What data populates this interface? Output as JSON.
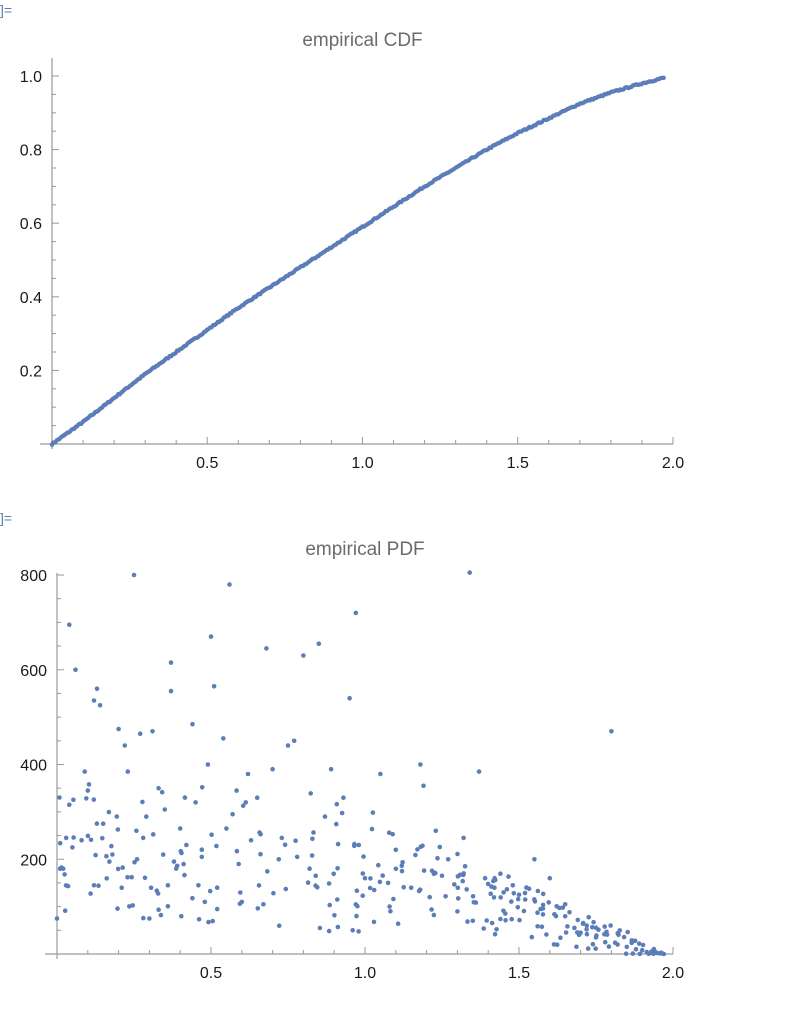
{
  "cells": [
    {
      "out_label": "]="
    },
    {
      "out_label": "]="
    }
  ],
  "colors": {
    "points": "#5b7db8",
    "axis": "#9a9a9a",
    "title": "#6b6b6b",
    "out_label": "#5a7fa8"
  },
  "chart_data": [
    {
      "type": "scatter",
      "title": "empirical CDF",
      "xlabel": "",
      "ylabel": "",
      "xlim": [
        0,
        2.0
      ],
      "ylim": [
        0,
        1.0
      ],
      "x_ticks": [
        "0.5",
        "1.0",
        "1.5",
        "2.0"
      ],
      "y_ticks": [
        "0.2",
        "0.4",
        "0.6",
        "0.8",
        "1.0"
      ],
      "grid": false,
      "description": "Dense monotone increasing curve of points from (0,0) to (~1.97, ~1.0), nearly linear with slope ~0.6 up to x~1.2, then concave bending toward 1.0.",
      "x": [
        0.0,
        0.1,
        0.2,
        0.3,
        0.4,
        0.5,
        0.6,
        0.7,
        0.8,
        0.9,
        1.0,
        1.1,
        1.2,
        1.3,
        1.4,
        1.5,
        1.6,
        1.7,
        1.8,
        1.9,
        1.97
      ],
      "y": [
        0.0,
        0.06,
        0.125,
        0.19,
        0.25,
        0.31,
        0.37,
        0.425,
        0.48,
        0.535,
        0.59,
        0.645,
        0.7,
        0.75,
        0.8,
        0.845,
        0.885,
        0.925,
        0.955,
        0.98,
        0.995
      ]
    },
    {
      "type": "scatter",
      "title": "empirical PDF",
      "xlabel": "",
      "ylabel": "",
      "xlim": [
        0,
        2.0
      ],
      "ylim": [
        0,
        800
      ],
      "x_ticks": [
        "0.5",
        "1.0",
        "1.5",
        "2.0"
      ],
      "y_ticks": [
        "200",
        "400",
        "600",
        "800"
      ],
      "grid": false,
      "description": "Noisy scatter of density estimates; roughly 100-400 for x<1, decreasing toward 0 as x approaches 2. Outliers up to ~800.",
      "points": [
        [
          0.0,
          75
        ],
        [
          0.01,
          180
        ],
        [
          0.02,
          180
        ],
        [
          0.03,
          245
        ],
        [
          0.04,
          315
        ],
        [
          0.05,
          225
        ],
        [
          0.06,
          600
        ],
        [
          0.04,
          695
        ],
        [
          0.08,
          240
        ],
        [
          0.09,
          385
        ],
        [
          0.1,
          345
        ],
        [
          0.12,
          145
        ],
        [
          0.13,
          560
        ],
        [
          0.12,
          535
        ],
        [
          0.14,
          525
        ],
        [
          0.15,
          275
        ],
        [
          0.17,
          195
        ],
        [
          0.18,
          210
        ],
        [
          0.2,
          475
        ],
        [
          0.21,
          140
        ],
        [
          0.22,
          440
        ],
        [
          0.23,
          385
        ],
        [
          0.25,
          800
        ],
        [
          0.26,
          200
        ],
        [
          0.27,
          465
        ],
        [
          0.28,
          245
        ],
        [
          0.29,
          290
        ],
        [
          0.3,
          75
        ],
        [
          0.31,
          470
        ],
        [
          0.33,
          350
        ],
        [
          0.35,
          305
        ],
        [
          0.36,
          145
        ],
        [
          0.37,
          615
        ],
        [
          0.37,
          555
        ],
        [
          0.38,
          195
        ],
        [
          0.4,
          265
        ],
        [
          0.42,
          230
        ],
        [
          0.44,
          485
        ],
        [
          0.45,
          320
        ],
        [
          0.47,
          205
        ],
        [
          0.48,
          110
        ],
        [
          0.49,
          400
        ],
        [
          0.5,
          670
        ],
        [
          0.51,
          565
        ],
        [
          0.52,
          140
        ],
        [
          0.54,
          455
        ],
        [
          0.55,
          265
        ],
        [
          0.56,
          780
        ],
        [
          0.57,
          295
        ],
        [
          0.59,
          190
        ],
        [
          0.6,
          110
        ],
        [
          0.62,
          380
        ],
        [
          0.63,
          240
        ],
        [
          0.65,
          330
        ],
        [
          0.67,
          105
        ],
        [
          0.68,
          645
        ],
        [
          0.7,
          390
        ],
        [
          0.72,
          200
        ],
        [
          0.73,
          245
        ],
        [
          0.75,
          440
        ],
        [
          0.77,
          450
        ],
        [
          0.78,
          205
        ],
        [
          0.8,
          630
        ],
        [
          0.82,
          180
        ],
        [
          0.84,
          165
        ],
        [
          0.85,
          655
        ],
        [
          0.87,
          290
        ],
        [
          0.89,
          390
        ],
        [
          0.91,
          115
        ],
        [
          0.93,
          330
        ],
        [
          0.95,
          540
        ],
        [
          0.97,
          720
        ],
        [
          0.96,
          50
        ],
        [
          0.98,
          230
        ],
        [
          1.0,
          160
        ],
        [
          1.03,
          135
        ],
        [
          1.05,
          380
        ],
        [
          1.08,
          100
        ],
        [
          1.1,
          220
        ],
        [
          1.12,
          175
        ],
        [
          1.15,
          140
        ],
        [
          1.18,
          400
        ],
        [
          1.19,
          355
        ],
        [
          1.21,
          120
        ],
        [
          1.23,
          260
        ],
        [
          1.25,
          165
        ],
        [
          1.27,
          200
        ],
        [
          1.3,
          90
        ],
        [
          1.32,
          245
        ],
        [
          1.34,
          805
        ],
        [
          1.35,
          70
        ],
        [
          1.37,
          385
        ],
        [
          1.39,
          160
        ],
        [
          1.42,
          140
        ],
        [
          1.45,
          130
        ],
        [
          1.48,
          145
        ],
        [
          1.5,
          125
        ],
        [
          1.52,
          115
        ],
        [
          1.55,
          200
        ],
        [
          1.57,
          95
        ],
        [
          1.6,
          160
        ],
        [
          1.62,
          80
        ],
        [
          1.65,
          105
        ],
        [
          1.68,
          55
        ],
        [
          1.7,
          45
        ],
        [
          1.72,
          60
        ],
        [
          1.75,
          35
        ],
        [
          1.78,
          25
        ],
        [
          1.8,
          470
        ],
        [
          1.82,
          20
        ],
        [
          1.85,
          15
        ],
        [
          1.88,
          10
        ],
        [
          1.9,
          8
        ],
        [
          1.93,
          5
        ],
        [
          1.95,
          2
        ],
        [
          1.97,
          0
        ]
      ]
    }
  ]
}
